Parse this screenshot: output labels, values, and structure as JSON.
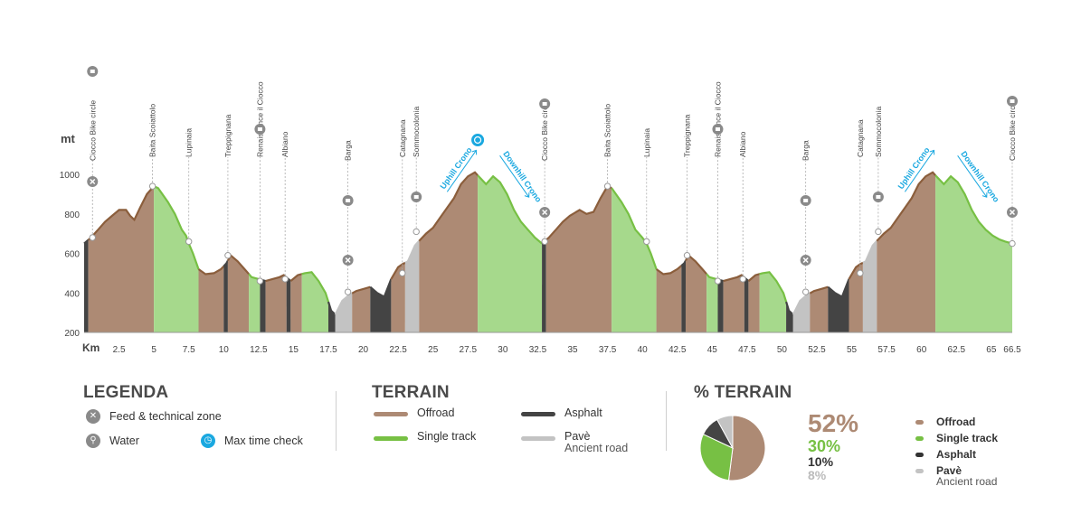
{
  "colors": {
    "offroad": "#ad8a74",
    "offroad_line": "#8b5e3c",
    "single_track": "#a6d98c",
    "single_track_line": "#77c044",
    "asphalt": "#444444",
    "pave": "#c3c3c3",
    "accent_blue": "#1aa8e0"
  },
  "chart_data": {
    "type": "area",
    "ylabel": "mt",
    "xlabel": "Km",
    "xlim": [
      0,
      66.5
    ],
    "ylim": [
      200,
      1150
    ],
    "yticks": [
      200,
      400,
      600,
      800,
      1000
    ],
    "xticks": [
      "2.5",
      "5",
      "7.5",
      "10",
      "12.5",
      "15",
      "17.5",
      "20",
      "22.5",
      "25",
      "27.5",
      "30",
      "32.5",
      "35",
      "37.5",
      "40",
      "42.5",
      "45",
      "47.5",
      "50",
      "52.5",
      "55",
      "57.5",
      "60",
      "62.5",
      "65",
      "66.5"
    ],
    "profile": [
      [
        0,
        650
      ],
      [
        0.5,
        680
      ],
      [
        1,
        720
      ],
      [
        1.5,
        760
      ],
      [
        2,
        790
      ],
      [
        2.5,
        820
      ],
      [
        3,
        820
      ],
      [
        3.3,
        790
      ],
      [
        3.6,
        770
      ],
      [
        4,
        830
      ],
      [
        4.5,
        900
      ],
      [
        5,
        940
      ],
      [
        5.3,
        930
      ],
      [
        6,
        860
      ],
      [
        6.5,
        800
      ],
      [
        7,
        720
      ],
      [
        7.3,
        690
      ],
      [
        7.5,
        650
      ],
      [
        7.8,
        600
      ],
      [
        8.2,
        520
      ],
      [
        8.7,
        495
      ],
      [
        9.3,
        500
      ],
      [
        9.8,
        520
      ],
      [
        10.2,
        550
      ],
      [
        10.5,
        590
      ],
      [
        11,
        560
      ],
      [
        11.5,
        520
      ],
      [
        12,
        480
      ],
      [
        12.5,
        470
      ],
      [
        13,
        460
      ],
      [
        13.5,
        470
      ],
      [
        14,
        480
      ],
      [
        14.3,
        490
      ],
      [
        14.8,
        460
      ],
      [
        15.3,
        490
      ],
      [
        15.8,
        500
      ],
      [
        16.3,
        505
      ],
      [
        16.8,
        460
      ],
      [
        17.3,
        400
      ],
      [
        17.7,
        310
      ],
      [
        18,
        290
      ],
      [
        18.5,
        360
      ],
      [
        19,
        390
      ],
      [
        19.5,
        410
      ],
      [
        20,
        420
      ],
      [
        20.5,
        430
      ],
      [
        21,
        400
      ],
      [
        21.5,
        380
      ],
      [
        22,
        470
      ],
      [
        22.5,
        530
      ],
      [
        22.8,
        545
      ],
      [
        23.2,
        560
      ],
      [
        23.7,
        640
      ],
      [
        24.5,
        700
      ],
      [
        25,
        730
      ],
      [
        25.5,
        780
      ],
      [
        26,
        830
      ],
      [
        26.5,
        880
      ],
      [
        27,
        950
      ],
      [
        27.5,
        990
      ],
      [
        28,
        1010
      ],
      [
        28.4,
        980
      ],
      [
        28.8,
        950
      ],
      [
        29.3,
        990
      ],
      [
        29.8,
        960
      ],
      [
        30.3,
        900
      ],
      [
        30.8,
        820
      ],
      [
        31.3,
        760
      ],
      [
        31.8,
        720
      ],
      [
        32.3,
        680
      ],
      [
        32.8,
        650
      ],
      [
        33.3,
        680
      ],
      [
        33.8,
        720
      ],
      [
        34.3,
        760
      ],
      [
        34.8,
        790
      ],
      [
        35.5,
        820
      ],
      [
        36,
        800
      ],
      [
        36.5,
        810
      ],
      [
        37,
        880
      ],
      [
        37.5,
        940
      ],
      [
        37.8,
        930
      ],
      [
        38.5,
        860
      ],
      [
        39,
        800
      ],
      [
        39.5,
        720
      ],
      [
        40,
        680
      ],
      [
        40.3,
        650
      ],
      [
        40.6,
        600
      ],
      [
        41,
        520
      ],
      [
        41.5,
        495
      ],
      [
        42,
        500
      ],
      [
        42.5,
        520
      ],
      [
        43,
        550
      ],
      [
        43.3,
        590
      ],
      [
        43.8,
        560
      ],
      [
        44.3,
        520
      ],
      [
        44.8,
        480
      ],
      [
        45.3,
        470
      ],
      [
        45.8,
        460
      ],
      [
        46.3,
        470
      ],
      [
        46.8,
        480
      ],
      [
        47.1,
        490
      ],
      [
        47.6,
        460
      ],
      [
        48.1,
        490
      ],
      [
        48.6,
        500
      ],
      [
        49.1,
        505
      ],
      [
        49.6,
        460
      ],
      [
        50.1,
        400
      ],
      [
        50.5,
        310
      ],
      [
        50.8,
        290
      ],
      [
        51.3,
        360
      ],
      [
        51.8,
        390
      ],
      [
        52.3,
        410
      ],
      [
        52.8,
        420
      ],
      [
        53.3,
        430
      ],
      [
        53.8,
        400
      ],
      [
        54.3,
        380
      ],
      [
        54.8,
        470
      ],
      [
        55.3,
        530
      ],
      [
        55.6,
        545
      ],
      [
        56,
        560
      ],
      [
        56.5,
        640
      ],
      [
        57.3,
        700
      ],
      [
        57.8,
        730
      ],
      [
        58.3,
        780
      ],
      [
        58.8,
        830
      ],
      [
        59.3,
        880
      ],
      [
        59.8,
        950
      ],
      [
        60.3,
        990
      ],
      [
        60.8,
        1010
      ],
      [
        61.2,
        980
      ],
      [
        61.6,
        950
      ],
      [
        62.1,
        990
      ],
      [
        62.6,
        960
      ],
      [
        63.1,
        900
      ],
      [
        63.6,
        820
      ],
      [
        64.1,
        760
      ],
      [
        64.6,
        720
      ],
      [
        65.1,
        690
      ],
      [
        65.6,
        670
      ],
      [
        66,
        660
      ],
      [
        66.5,
        650
      ]
    ],
    "terrain_segments": [
      {
        "from": 0,
        "to": 0.3,
        "type": "asphalt"
      },
      {
        "from": 0.3,
        "to": 5,
        "type": "offroad"
      },
      {
        "from": 5,
        "to": 8.2,
        "type": "single_track"
      },
      {
        "from": 8.2,
        "to": 10,
        "type": "offroad"
      },
      {
        "from": 10,
        "to": 10.3,
        "type": "asphalt"
      },
      {
        "from": 10.3,
        "to": 11.8,
        "type": "offroad"
      },
      {
        "from": 11.8,
        "to": 12.6,
        "type": "single_track"
      },
      {
        "from": 12.6,
        "to": 13,
        "type": "asphalt"
      },
      {
        "from": 13,
        "to": 14.5,
        "type": "offroad"
      },
      {
        "from": 14.5,
        "to": 14.8,
        "type": "asphalt"
      },
      {
        "from": 14.8,
        "to": 15.6,
        "type": "offroad"
      },
      {
        "from": 15.6,
        "to": 17.5,
        "type": "single_track"
      },
      {
        "from": 17.5,
        "to": 18,
        "type": "asphalt"
      },
      {
        "from": 18,
        "to": 19.2,
        "type": "pave"
      },
      {
        "from": 19.2,
        "to": 20.5,
        "type": "offroad"
      },
      {
        "from": 20.5,
        "to": 22,
        "type": "asphalt"
      },
      {
        "from": 22,
        "to": 23,
        "type": "offroad"
      },
      {
        "from": 23,
        "to": 24,
        "type": "pave"
      },
      {
        "from": 24,
        "to": 28.2,
        "type": "offroad"
      },
      {
        "from": 28.2,
        "to": 32.8,
        "type": "single_track"
      },
      {
        "from": 32.8,
        "to": 33.1,
        "type": "asphalt"
      },
      {
        "from": 33.1,
        "to": 37.8,
        "type": "offroad"
      },
      {
        "from": 37.8,
        "to": 41,
        "type": "single_track"
      },
      {
        "from": 41,
        "to": 42.8,
        "type": "offroad"
      },
      {
        "from": 42.8,
        "to": 43.1,
        "type": "asphalt"
      },
      {
        "from": 43.1,
        "to": 44.6,
        "type": "offroad"
      },
      {
        "from": 44.6,
        "to": 45.4,
        "type": "single_track"
      },
      {
        "from": 45.4,
        "to": 45.8,
        "type": "asphalt"
      },
      {
        "from": 45.8,
        "to": 47.3,
        "type": "offroad"
      },
      {
        "from": 47.3,
        "to": 47.6,
        "type": "asphalt"
      },
      {
        "from": 47.6,
        "to": 48.4,
        "type": "offroad"
      },
      {
        "from": 48.4,
        "to": 50.3,
        "type": "single_track"
      },
      {
        "from": 50.3,
        "to": 50.8,
        "type": "asphalt"
      },
      {
        "from": 50.8,
        "to": 52,
        "type": "pave"
      },
      {
        "from": 52,
        "to": 53.3,
        "type": "offroad"
      },
      {
        "from": 53.3,
        "to": 54.8,
        "type": "asphalt"
      },
      {
        "from": 54.8,
        "to": 55.8,
        "type": "offroad"
      },
      {
        "from": 55.8,
        "to": 56.8,
        "type": "pave"
      },
      {
        "from": 56.8,
        "to": 61,
        "type": "offroad"
      },
      {
        "from": 61,
        "to": 66.5,
        "type": "single_track"
      }
    ],
    "waypoints": [
      {
        "km": 0.6,
        "elev": 680,
        "label": "Ciocco Bike circle",
        "icons": [
          "water",
          "feed"
        ]
      },
      {
        "km": 4.9,
        "elev": 940,
        "label": "Baita Scoiattolo",
        "icons": []
      },
      {
        "km": 7.5,
        "elev": 660,
        "label": "Lupinaia",
        "icons": []
      },
      {
        "km": 10.3,
        "elev": 590,
        "label": "Treppignana",
        "icons": []
      },
      {
        "km": 12.6,
        "elev": 460,
        "label": "Renaissance il Ciocco",
        "icons": [
          "water"
        ]
      },
      {
        "km": 14.4,
        "elev": 470,
        "label": "Albiano",
        "icons": []
      },
      {
        "km": 18.9,
        "elev": 405,
        "label": "Barga",
        "icons": [
          "water",
          "feed"
        ]
      },
      {
        "km": 22.8,
        "elev": 500,
        "label": "Catagnana",
        "icons": []
      },
      {
        "km": 23.8,
        "elev": 710,
        "label": "Sommocolonia",
        "icons": [
          "water"
        ]
      },
      {
        "km": 33,
        "elev": 660,
        "label": "Ciocco Bike circle",
        "icons": [
          "water",
          "feed"
        ]
      },
      {
        "km": 37.5,
        "elev": 940,
        "label": "Baita Scoiattolo",
        "icons": []
      },
      {
        "km": 40.3,
        "elev": 660,
        "label": "Lupinaia",
        "icons": []
      },
      {
        "km": 43.2,
        "elev": 590,
        "label": "Treppignana",
        "icons": []
      },
      {
        "km": 45.4,
        "elev": 460,
        "label": "Renaissance il Ciocco",
        "icons": [
          "water"
        ]
      },
      {
        "km": 47.2,
        "elev": 470,
        "label": "Albiano",
        "icons": []
      },
      {
        "km": 51.7,
        "elev": 405,
        "label": "Barga",
        "icons": [
          "water",
          "feed"
        ]
      },
      {
        "km": 55.6,
        "elev": 500,
        "label": "Catagnana",
        "icons": []
      },
      {
        "km": 56.9,
        "elev": 710,
        "label": "Sommocolonia",
        "icons": [
          "water"
        ]
      },
      {
        "km": 66.5,
        "elev": 650,
        "label": "Ciocco Bike circle",
        "icons": [
          "water",
          "feed"
        ]
      }
    ],
    "crono_labels": [
      {
        "km": 25.8,
        "text": "Uphill Crono",
        "dir": "up"
      },
      {
        "km": 30,
        "text": "Downhill Crono",
        "dir": "down"
      },
      {
        "km": 58.6,
        "text": "Uphill Crono",
        "dir": "up"
      },
      {
        "km": 62.8,
        "text": "Downhill Crono",
        "dir": "down"
      }
    ],
    "max_time_check_km": 28.2,
    "pie": {
      "title": "% TERRAIN",
      "slices": [
        {
          "name": "Offroad",
          "value": 52,
          "label": "52%"
        },
        {
          "name": "Single track",
          "value": 30,
          "label": "30%"
        },
        {
          "name": "Asphalt",
          "value": 10,
          "label": "10%"
        },
        {
          "name": "Pavè",
          "sub": "Ancient road",
          "value": 8,
          "label": "8%"
        }
      ]
    }
  },
  "legenda": {
    "title": "LEGENDA",
    "feed": "Feed & technical zone",
    "water": "Water",
    "max_time": "Max time check",
    "icons": {
      "feed": "cross-icon",
      "water": "water-tap-icon",
      "max_time": "stopwatch-icon"
    }
  },
  "terrain": {
    "title": "TERRAIN",
    "offroad": "Offroad",
    "single_track": "Single track",
    "asphalt": "Asphalt",
    "pave": "Pavè",
    "pave_sub": "Ancient road"
  },
  "pct_terrain": {
    "title": "% TERRAIN",
    "offroad": "Offroad",
    "single_track": "Single track",
    "asphalt": "Asphalt",
    "pave": "Pavè",
    "pave_sub": "Ancient road",
    "v_offroad": "52%",
    "v_single": "30%",
    "v_asphalt": "10%",
    "v_pave": "8%"
  }
}
